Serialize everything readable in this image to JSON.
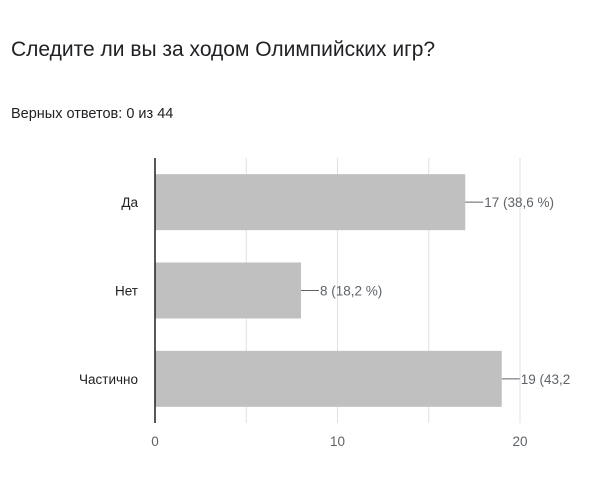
{
  "question": {
    "title": "Следите ли вы за ходом Олимпийских игр?",
    "score_text": "Верных ответов: 0 из 44"
  },
  "colors": {
    "bar": "#c0c0c0",
    "axis": "#202124",
    "grid": "#e0e0e0",
    "label": "#5f6368"
  },
  "chart_data": {
    "type": "bar",
    "orientation": "horizontal",
    "categories": [
      "Да",
      "Нет",
      "Частично"
    ],
    "values": [
      17,
      8,
      19
    ],
    "data_labels": [
      "17 (38,6 %)",
      "8 (18,2 %)",
      "19 (43,2"
    ],
    "xlim": [
      0,
      20
    ],
    "x_ticks": [
      "0",
      "10",
      "20"
    ],
    "grid": true
  }
}
